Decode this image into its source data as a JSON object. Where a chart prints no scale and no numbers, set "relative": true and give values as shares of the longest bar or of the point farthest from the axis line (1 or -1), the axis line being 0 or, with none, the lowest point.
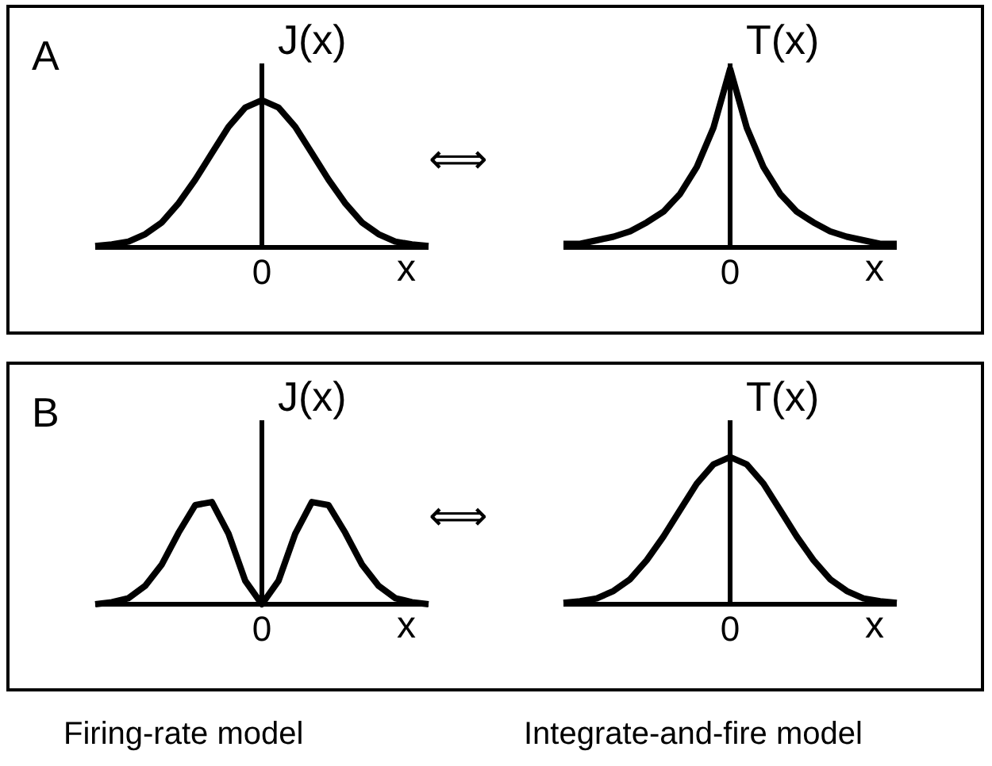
{
  "chart_data": [
    {
      "type": "line",
      "relative": true,
      "ylabel": "J(x)",
      "xlabel": "x",
      "annotations": [
        "0",
        "A"
      ],
      "categories": [
        null,
        null,
        null,
        null,
        null,
        null,
        null,
        null,
        null,
        null,
        null,
        null,
        null,
        null,
        null,
        null,
        null,
        null,
        null,
        null,
        null
      ],
      "marker": "none",
      "series": [
        {
          "color": "#000000",
          "values": [
            0.01,
            0.02,
            0.04,
            0.09,
            0.17,
            0.3,
            0.46,
            0.64,
            0.82,
            0.95,
            1,
            0.95,
            0.82,
            0.64,
            0.46,
            0.3,
            0.17,
            0.09,
            0.04,
            0.02,
            0.01
          ]
        }
      ]
    },
    {
      "type": "line",
      "relative": true,
      "ylabel": "T(x)",
      "xlabel": "x",
      "annotations": [
        "0",
        "⟺"
      ],
      "categories": [
        null,
        null,
        null,
        null,
        null,
        null,
        null,
        null,
        null,
        null,
        null,
        null,
        null,
        null,
        null,
        null,
        null,
        null,
        null,
        null,
        null
      ],
      "marker": "none",
      "series": [
        {
          "color": "#000000",
          "values": [
            0.02,
            0.02,
            0.04,
            0.06,
            0.09,
            0.14,
            0.2,
            0.3,
            0.45,
            0.67,
            1,
            0.67,
            0.45,
            0.3,
            0.2,
            0.14,
            0.09,
            0.06,
            0.04,
            0.02,
            0.02
          ]
        }
      ]
    },
    {
      "type": "line",
      "relative": true,
      "ylabel": "J(x)",
      "xlabel": "x",
      "annotations": [
        "0",
        "B",
        "Firing-rate model"
      ],
      "categories": [
        null,
        null,
        null,
        null,
        null,
        null,
        null,
        null,
        null,
        null,
        null,
        null,
        null,
        null,
        null,
        null,
        null,
        null,
        null,
        null,
        null
      ],
      "marker": "none",
      "series": [
        {
          "color": "#000000",
          "values": [
            0,
            0.02,
            0.06,
            0.18,
            0.39,
            0.7,
            0.97,
            1,
            0.69,
            0.23,
            0,
            0.23,
            0.69,
            1,
            0.97,
            0.7,
            0.39,
            0.18,
            0.06,
            0.02,
            0
          ]
        }
      ]
    },
    {
      "type": "line",
      "relative": true,
      "ylabel": "T(x)",
      "xlabel": "x",
      "annotations": [
        "0",
        "⟺",
        "Integrate-and-fire model"
      ],
      "categories": [
        null,
        null,
        null,
        null,
        null,
        null,
        null,
        null,
        null,
        null,
        null,
        null,
        null,
        null,
        null,
        null,
        null,
        null,
        null,
        null,
        null
      ],
      "marker": "none",
      "series": [
        {
          "color": "#000000",
          "values": [
            0.01,
            0.02,
            0.04,
            0.09,
            0.17,
            0.3,
            0.46,
            0.64,
            0.82,
            0.95,
            1,
            0.95,
            0.82,
            0.64,
            0.46,
            0.3,
            0.17,
            0.09,
            0.04,
            0.02,
            0.01
          ]
        }
      ]
    }
  ]
}
